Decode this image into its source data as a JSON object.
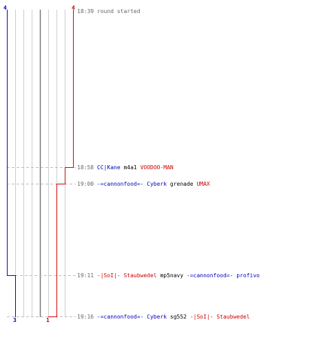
{
  "scoreboard": {
    "start_event": {
      "time": "18:39",
      "text": "round started"
    },
    "top_scores": {
      "blue": "4",
      "red": "4"
    },
    "bottom_scores": {
      "blue": "3",
      "red": "1"
    },
    "colors": {
      "blue": "#0000bb",
      "red": "#cc0000",
      "dark_text": "#000000",
      "time": "#666666",
      "grid": "#cccccc",
      "grid_mid": "#777777",
      "dashed": "#bbbbbb"
    },
    "events": [
      {
        "time": "18:58",
        "parts": [
          {
            "text": "CC|Kane",
            "team": "blue"
          },
          {
            "text": "m4a1",
            "team": "weapon"
          },
          {
            "text": "VOODOO-MAN",
            "team": "red"
          }
        ]
      },
      {
        "time": "19:00",
        "parts": [
          {
            "text": "-=cannonfood=- Cyberk",
            "team": "blue"
          },
          {
            "text": "grenade",
            "team": "weapon"
          },
          {
            "text": "UMAX",
            "team": "red"
          }
        ]
      },
      {
        "time": "19:11",
        "parts": [
          {
            "text": "-|SoI|- Staubwedel",
            "team": "red"
          },
          {
            "text": "mp5navy",
            "team": "weapon"
          },
          {
            "text": "-=cannonfood=- profivo",
            "team": "blue"
          }
        ]
      },
      {
        "time": "19:16",
        "parts": [
          {
            "text": "-=cannonfood=- Cyberk",
            "team": "blue"
          },
          {
            "text": "sg552",
            "team": "weapon"
          },
          {
            "text": "-|SoI|- Staubwedel",
            "team": "red"
          }
        ]
      }
    ]
  }
}
